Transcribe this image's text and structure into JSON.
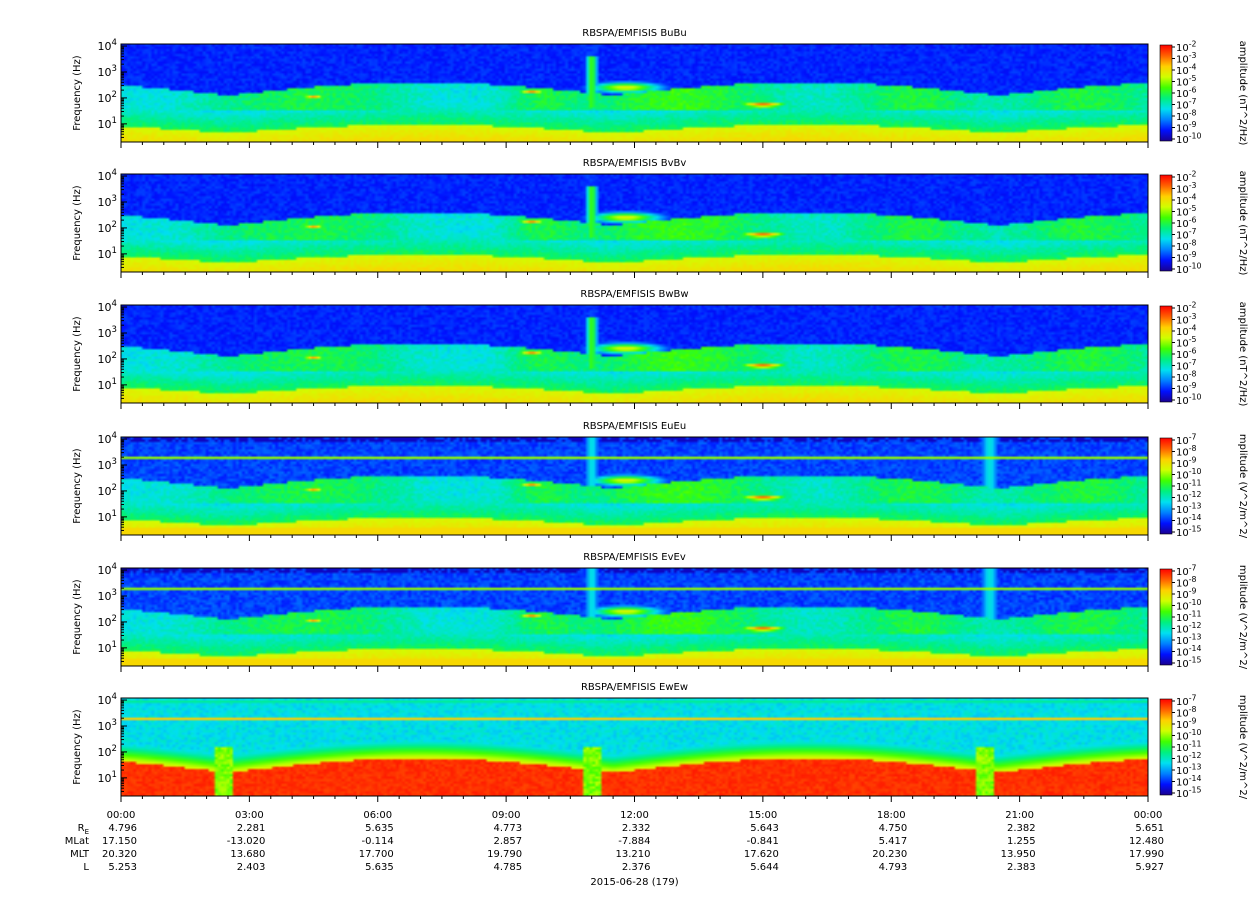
{
  "chart_data": {
    "type": "heatmap",
    "date_label": "2015-06-28 (179)",
    "x_ticks": [
      "00:00",
      "03:00",
      "06:00",
      "09:00",
      "12:00",
      "15:00",
      "18:00",
      "21:00",
      "00:00"
    ],
    "orbit_rows": [
      {
        "label": "R",
        "sub": "E",
        "values": [
          "4.796",
          "2.281",
          "5.635",
          "4.773",
          "2.332",
          "5.643",
          "4.750",
          "2.382",
          "5.651"
        ]
      },
      {
        "label": "MLat",
        "values": [
          "17.150",
          "-13.020",
          "-0.114",
          "2.857",
          "-7.884",
          "-0.841",
          "5.417",
          "1.255",
          "12.480"
        ]
      },
      {
        "label": "MLT",
        "values": [
          "20.320",
          "13.680",
          "17.700",
          "19.790",
          "13.210",
          "17.620",
          "20.230",
          "13.950",
          "17.990"
        ]
      },
      {
        "label": "L",
        "values": [
          "5.253",
          "2.403",
          "5.635",
          "4.785",
          "2.376",
          "5.644",
          "4.793",
          "2.383",
          "5.927"
        ]
      }
    ],
    "y_axis": {
      "label": "Frequency (Hz)",
      "scale": "log",
      "range_hz": [
        2,
        12000
      ],
      "tick_labels": [
        {
          "base": "10",
          "exp": "1",
          "value": 10
        },
        {
          "base": "10",
          "exp": "2",
          "value": 100
        },
        {
          "base": "10",
          "exp": "3",
          "value": 1000
        },
        {
          "base": "10",
          "exp": "4",
          "value": 10000
        }
      ]
    },
    "colormap": [
      "#1a0090",
      "#0010ff",
      "#0080ff",
      "#00e0f0",
      "#00f080",
      "#40ff00",
      "#d0ff00",
      "#ffd000",
      "#ff6000",
      "#ff0000"
    ],
    "panels": [
      {
        "title": "RBSPA/EMFISIS  BuBu",
        "component": "B",
        "cb_label": "amplitude (nT^2/Hz)",
        "cb_exps": [
          "-2",
          "-3",
          "-4",
          "-5",
          "-6",
          "-7",
          "-8",
          "-9",
          "-10"
        ],
        "color_log_range": [
          -10,
          -2
        ]
      },
      {
        "title": "RBSPA/EMFISIS  BvBv",
        "component": "B",
        "cb_label": "amplitude (nT^2/Hz)",
        "cb_exps": [
          "-2",
          "-3",
          "-4",
          "-5",
          "-6",
          "-7",
          "-8",
          "-9",
          "-10"
        ],
        "color_log_range": [
          -10,
          -2
        ]
      },
      {
        "title": "RBSPA/EMFISIS  BwBw",
        "component": "B",
        "cb_label": "amplitude (nT^2/Hz)",
        "cb_exps": [
          "-2",
          "-3",
          "-4",
          "-5",
          "-6",
          "-7",
          "-8",
          "-9",
          "-10"
        ],
        "color_log_range": [
          -10,
          -2
        ]
      },
      {
        "title": "RBSPA/EMFISIS  EuEu",
        "component": "E",
        "cb_label": "mplitude (V^2/m^2/",
        "cb_exps": [
          "-7",
          "-8",
          "-9",
          "-10",
          "-11",
          "-12",
          "-13",
          "-14",
          "-15"
        ],
        "color_log_range": [
          -15,
          -7
        ]
      },
      {
        "title": "RBSPA/EMFISIS  EvEv",
        "component": "E",
        "cb_label": "mplitude (V^2/m^2/",
        "cb_exps": [
          "-7",
          "-8",
          "-9",
          "-10",
          "-11",
          "-12",
          "-13",
          "-14",
          "-15"
        ],
        "color_log_range": [
          -15,
          -7
        ]
      },
      {
        "title": "RBSPA/EMFISIS  EwEw",
        "component": "Ew",
        "cb_label": "mplitude (V^2/m^2/",
        "cb_exps": [
          "-7",
          "-8",
          "-9",
          "-10",
          "-11",
          "-12",
          "-13",
          "-14",
          "-15"
        ],
        "color_log_range": [
          -15,
          -7
        ]
      }
    ]
  }
}
